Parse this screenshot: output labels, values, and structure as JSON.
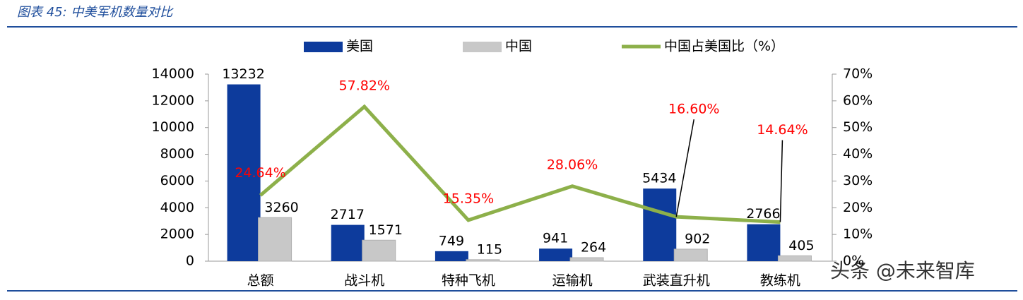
{
  "header": {
    "title": "图表 45:  中美军机数量对比"
  },
  "watermark": "头条 @未来智库",
  "chart_data": {
    "type": "bar-line",
    "categories": [
      "总额",
      "战斗机",
      "特种飞机",
      "运输机",
      "武装直升机",
      "教练机"
    ],
    "series": [
      {
        "name": "美国",
        "type": "bar",
        "color": "#0d3b9c",
        "values": [
          13232,
          2717,
          749,
          941,
          5434,
          2766
        ]
      },
      {
        "name": "中国",
        "type": "bar",
        "color": "#c8c8c8",
        "values": [
          3260,
          1571,
          115,
          264,
          902,
          405
        ]
      },
      {
        "name": "中国占美国比（%）",
        "type": "line",
        "axis": "y2",
        "color": "#8db04a",
        "values": [
          24.64,
          57.82,
          15.35,
          28.06,
          16.6,
          14.64
        ],
        "value_labels": [
          "24.64%",
          "57.82%",
          "15.35%",
          "28.06%",
          "16.60%",
          "14.64%"
        ]
      }
    ],
    "ylim": [
      0,
      14000
    ],
    "yticks": [
      0,
      2000,
      4000,
      6000,
      8000,
      10000,
      12000,
      14000
    ],
    "y2lim": [
      0,
      70
    ],
    "y2ticks": [
      {
        "value": 0,
        "label": "0%"
      },
      {
        "value": 10,
        "label": "10%"
      },
      {
        "value": 20,
        "label": "20%"
      },
      {
        "value": 30,
        "label": "30%"
      },
      {
        "value": 40,
        "label": "40%"
      },
      {
        "value": 50,
        "label": "50%"
      },
      {
        "value": 60,
        "label": "60%"
      },
      {
        "value": 70,
        "label": "70%"
      }
    ],
    "label_color": "#ff0000"
  }
}
